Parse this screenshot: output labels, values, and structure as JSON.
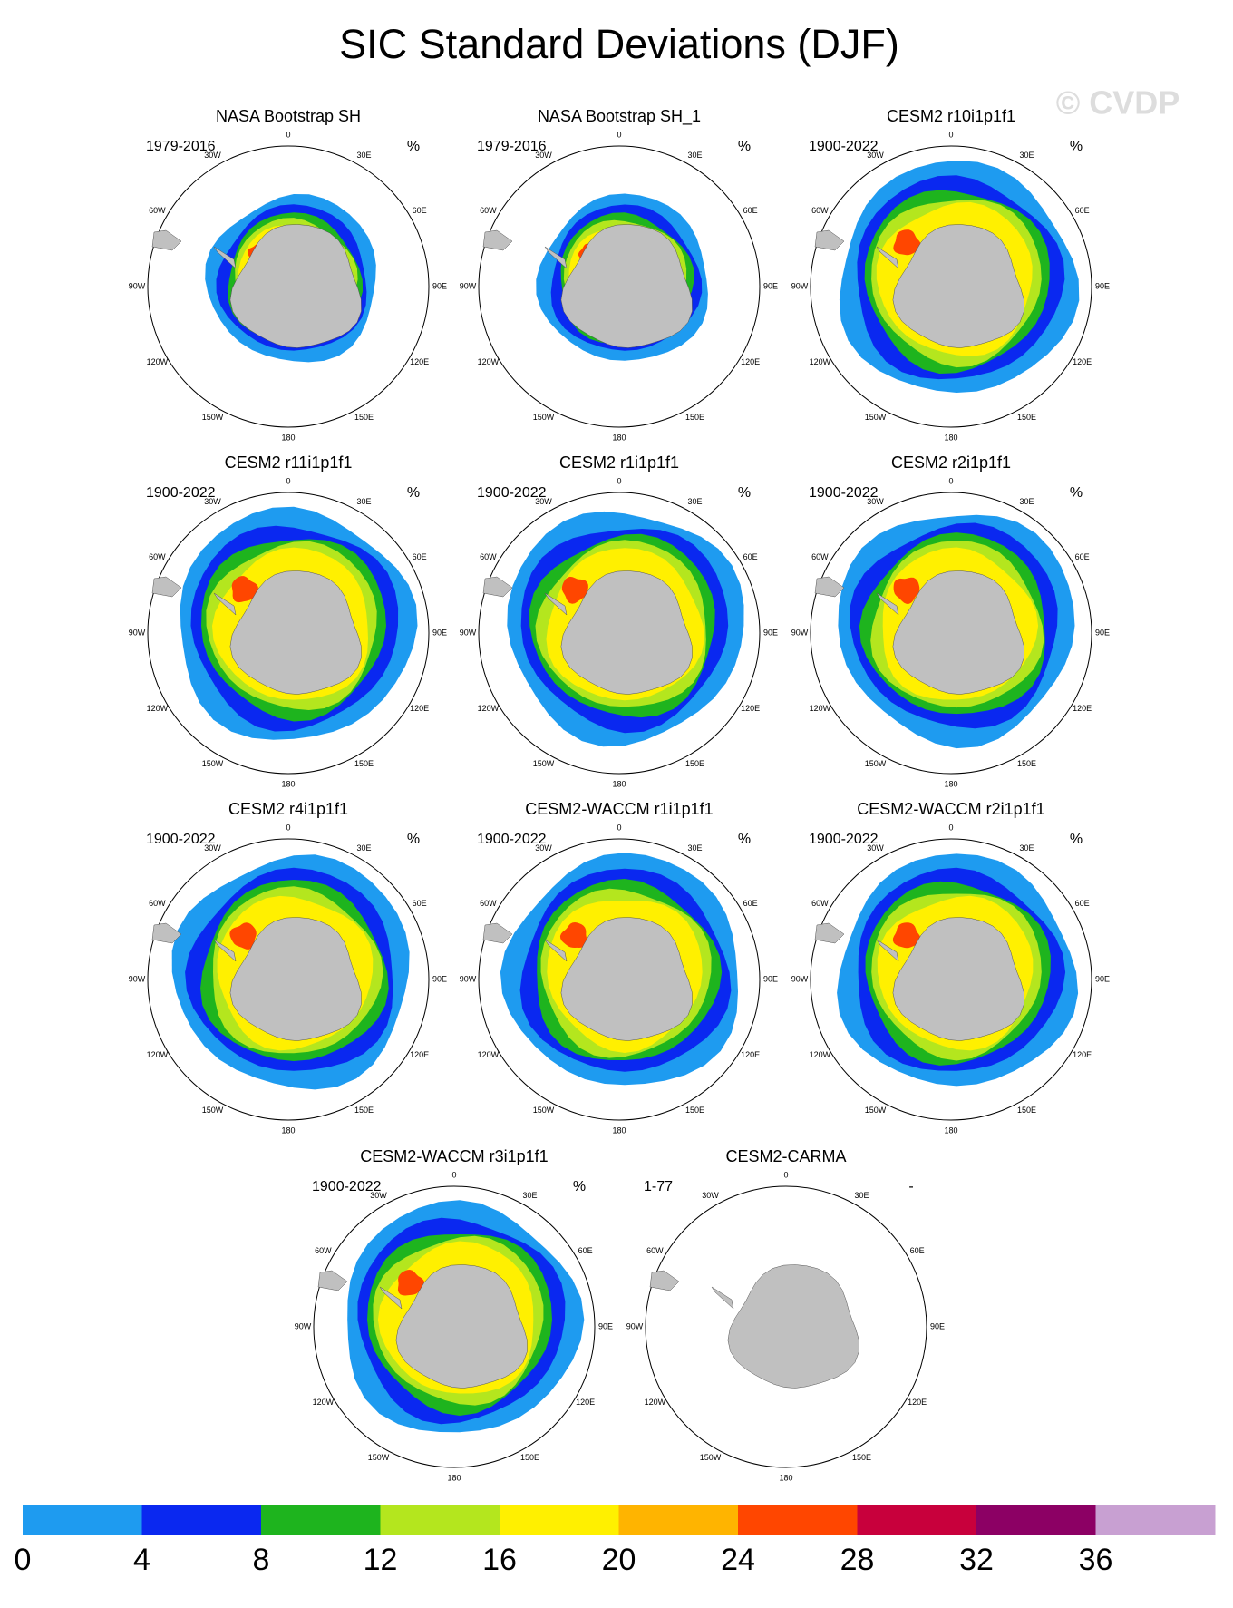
{
  "title": "SIC Standard Deviations (DJF)",
  "watermark": "© CVDP",
  "lon_labels": [
    "0",
    "30E",
    "60E",
    "90E",
    "120E",
    "150E",
    "180",
    "150W",
    "120W",
    "90W",
    "60W",
    "30W"
  ],
  "panels": [
    {
      "title": "NASA Bootstrap SH",
      "period": "1979-2016",
      "units": "%"
    },
    {
      "title": "NASA Bootstrap SH_1",
      "period": "1979-2016",
      "units": "%"
    },
    {
      "title": "CESM2 r10i1p1f1",
      "period": "1900-2022",
      "units": "%"
    },
    {
      "title": "CESM2 r11i1p1f1",
      "period": "1900-2022",
      "units": "%"
    },
    {
      "title": "CESM2 r1i1p1f1",
      "period": "1900-2022",
      "units": "%"
    },
    {
      "title": "CESM2 r2i1p1f1",
      "period": "1900-2022",
      "units": "%"
    },
    {
      "title": "CESM2 r4i1p1f1",
      "period": "1900-2022",
      "units": "%"
    },
    {
      "title": "CESM2-WACCM r1i1p1f1",
      "period": "1900-2022",
      "units": "%"
    },
    {
      "title": "CESM2-WACCM r2i1p1f1",
      "period": "1900-2022",
      "units": "%"
    },
    {
      "title": "CESM2-WACCM r3i1p1f1",
      "period": "1900-2022",
      "units": "%"
    },
    {
      "title": "CESM2-CARMA",
      "period": "1-77",
      "units": "-"
    }
  ],
  "colorbar": {
    "colors": [
      "#1e9bf0",
      "#0a28f0",
      "#1eb41e",
      "#b4e61e",
      "#fff000",
      "#ffb400",
      "#ff4600",
      "#c8003c",
      "#8c0064",
      "#c8a0d2"
    ],
    "ticks": [
      0,
      4,
      8,
      12,
      16,
      20,
      24,
      28,
      32,
      36
    ]
  }
}
